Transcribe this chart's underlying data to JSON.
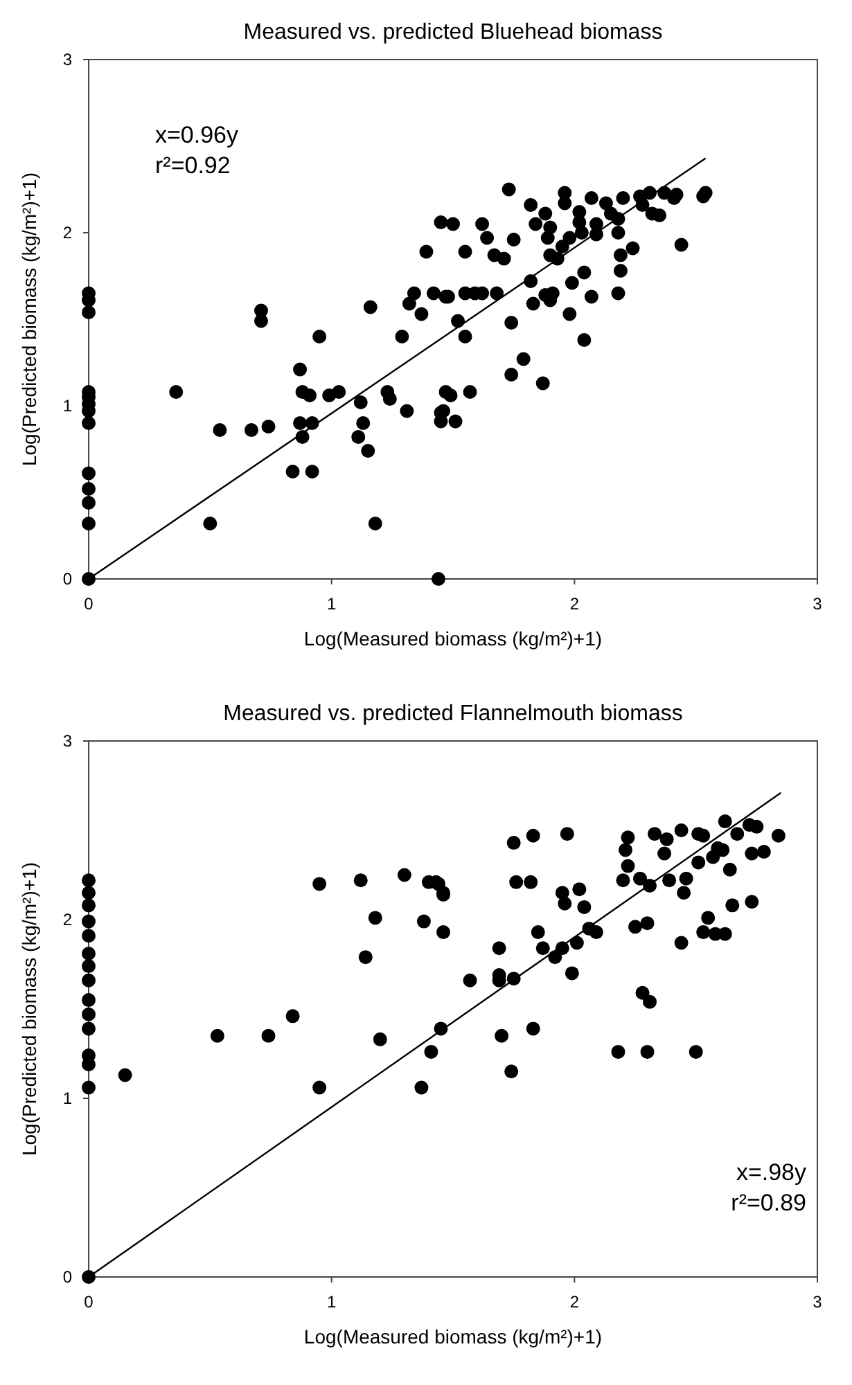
{
  "chart_data": [
    {
      "type": "scatter",
      "title": "Measured vs. predicted Bluehead biomass",
      "xlabel": "Log(Measured biomass (kg/m²)+1)",
      "ylabel": "Log(Predicted biomass (kg/m²)+1)",
      "xlim": [
        0,
        3
      ],
      "ylim": [
        0,
        3
      ],
      "xticks": [
        0,
        1,
        2,
        3
      ],
      "yticks": [
        0,
        1,
        2,
        3
      ],
      "annotations": [
        "x=0.96y",
        "r²=0.92"
      ],
      "series": [
        {
          "color": "#000000",
          "marker": "circle",
          "x": [
            0,
            0,
            0,
            0,
            0,
            0,
            0,
            0,
            0,
            0,
            0,
            0,
            0,
            0.36,
            0.54,
            0.67,
            0.74,
            0.71,
            0.71,
            0.5,
            0.87,
            0.88,
            0.91,
            0.87,
            0.92,
            0.88,
            0.84,
            0.92,
            0.95,
            0.99,
            1.03,
            1.12,
            1.13,
            1.11,
            1.15,
            1.16,
            1.18,
            1.23,
            1.24,
            1.31,
            1.29,
            1.39,
            1.45,
            1.34,
            1.32,
            1.37,
            1.42,
            1.47,
            1.47,
            1.45,
            1.45,
            1.44,
            1.73,
            1.5,
            1.62,
            1.64,
            1.55,
            1.67,
            1.71,
            1.75,
            1.82,
            1.88,
            1.84,
            1.9,
            1.89,
            1.96,
            1.96,
            2.02,
            2.02,
            2.03,
            1.98,
            1.95,
            1.9,
            1.93,
            2.07,
            2.13,
            2.15,
            2.18,
            2.09,
            2.09,
            2.2,
            2.27,
            2.31,
            2.28,
            2.32,
            2.35,
            2.37,
            2.42,
            2.41,
            2.53,
            2.54,
            2.44,
            2.18,
            2.19,
            2.24,
            2.19,
            2.18,
            2.04,
            1.99,
            2.07,
            1.98,
            2.04,
            1.82,
            1.83,
            1.88,
            1.91,
            1.9,
            1.74,
            1.79,
            1.74,
            1.87,
            1.48,
            1.55,
            1.59,
            1.62,
            1.68,
            1.52,
            1.55,
            1.49,
            1.57,
            1.46,
            1.51
          ],
          "values": [
            1.65,
            1.61,
            1.54,
            1.08,
            1.05,
            1.01,
            0.97,
            0.9,
            0.61,
            0.52,
            0.44,
            0.32,
            0,
            1.08,
            0.86,
            0.86,
            0.88,
            1.55,
            1.49,
            0.32,
            1.21,
            1.08,
            1.06,
            0.9,
            0.9,
            0.82,
            0.62,
            0.62,
            1.4,
            1.06,
            1.08,
            1.02,
            0.9,
            0.82,
            0.74,
            1.57,
            0.32,
            1.08,
            1.04,
            0.97,
            1.4,
            1.89,
            2.06,
            1.65,
            1.59,
            1.53,
            1.65,
            1.63,
            1.08,
            0.96,
            0.91,
            0,
            2.25,
            2.05,
            2.05,
            1.97,
            1.89,
            1.87,
            1.85,
            1.96,
            2.16,
            2.11,
            2.05,
            2.03,
            1.97,
            2.23,
            2.17,
            2.12,
            2.06,
            2,
            1.97,
            1.92,
            1.87,
            1.85,
            2.2,
            2.17,
            2.11,
            2.08,
            2.05,
            1.99,
            2.2,
            2.21,
            2.23,
            2.16,
            2.11,
            2.1,
            2.23,
            2.22,
            2.2,
            2.21,
            2.23,
            1.93,
            2,
            1.87,
            1.91,
            1.78,
            1.65,
            1.77,
            1.71,
            1.63,
            1.53,
            1.38,
            1.72,
            1.59,
            1.64,
            1.65,
            1.61,
            1.48,
            1.27,
            1.18,
            1.13,
            1.63,
            1.65,
            1.65,
            1.65,
            1.65,
            1.49,
            1.4,
            1.06,
            1.08,
            0.97,
            0.91
          ]
        },
        {
          "type": "line",
          "color": "#000000",
          "marker": "none",
          "line_style": "solid",
          "x": [
            0,
            2.54
          ],
          "values": [
            0,
            2.43
          ]
        }
      ]
    },
    {
      "type": "scatter",
      "title": "Measured vs. predicted Flannelmouth biomass",
      "xlabel": "Log(Measured biomass (kg/m²)+1)",
      "ylabel": "Log(Predicted biomass (kg/m²)+1)",
      "xlim": [
        0,
        3
      ],
      "ylim": [
        0,
        3
      ],
      "xticks": [
        0,
        1,
        2,
        3
      ],
      "yticks": [
        0,
        1,
        2,
        3
      ],
      "annotations": [
        "x=.98y",
        "r²=0.89"
      ],
      "series": [
        {
          "color": "#000000",
          "marker": "circle",
          "x": [
            0,
            0,
            0,
            0,
            0,
            0,
            0,
            0,
            0,
            0,
            0,
            0,
            0,
            0,
            0,
            0.15,
            0.53,
            0.74,
            0.84,
            0.95,
            0.95,
            1.12,
            1.18,
            1.14,
            1.2,
            1.3,
            1.4,
            1.44,
            1.46,
            1.38,
            1.46,
            1.45,
            1.41,
            1.37,
            1.43,
            1.46,
            1.75,
            1.83,
            1.97,
            1.76,
            1.82,
            1.95,
            2.02,
            1.96,
            2.04,
            1.85,
            1.69,
            1.87,
            1.92,
            1.95,
            2.01,
            2.06,
            2.09,
            1.57,
            1.69,
            1.69,
            1.75,
            1.99,
            1.7,
            1.83,
            1.74,
            2.18,
            2.3,
            2.5,
            2.28,
            2.31,
            2.25,
            2.3,
            2.44,
            2.53,
            2.55,
            2.58,
            2.62,
            2.65,
            2.73,
            2.45,
            2.22,
            2.21,
            2.33,
            2.38,
            2.44,
            2.51,
            2.53,
            2.62,
            2.67,
            2.72,
            2.75,
            2.84,
            2.78,
            2.73,
            2.22,
            2.2,
            2.27,
            2.31,
            2.37,
            2.39,
            2.46,
            2.51,
            2.57,
            2.61,
            2.64,
            2.59
          ],
          "values": [
            2.22,
            2.15,
            2.08,
            1.99,
            1.91,
            1.81,
            1.74,
            1.66,
            1.55,
            1.47,
            1.39,
            1.24,
            1.19,
            1.06,
            0,
            1.13,
            1.35,
            1.35,
            1.46,
            2.2,
            1.06,
            2.22,
            2.01,
            1.79,
            1.33,
            2.25,
            2.21,
            2.2,
            2.15,
            1.99,
            1.93,
            1.39,
            1.26,
            1.06,
            2.21,
            2.14,
            2.43,
            2.47,
            2.48,
            2.21,
            2.21,
            2.15,
            2.17,
            2.09,
            2.07,
            1.93,
            1.84,
            1.84,
            1.79,
            1.84,
            1.87,
            1.95,
            1.93,
            1.66,
            1.69,
            1.66,
            1.67,
            1.7,
            1.35,
            1.39,
            1.15,
            1.26,
            1.26,
            1.26,
            1.59,
            1.54,
            1.96,
            1.98,
            1.87,
            1.93,
            2.01,
            1.92,
            1.92,
            2.08,
            2.1,
            2.15,
            2.46,
            2.39,
            2.48,
            2.45,
            2.5,
            2.48,
            2.47,
            2.55,
            2.48,
            2.53,
            2.52,
            2.47,
            2.38,
            2.37,
            2.3,
            2.22,
            2.23,
            2.19,
            2.37,
            2.22,
            2.23,
            2.32,
            2.35,
            2.39,
            2.28,
            2.4
          ]
        },
        {
          "type": "line",
          "color": "#000000",
          "marker": "none",
          "line_style": "solid",
          "x": [
            0,
            2.85
          ],
          "values": [
            0,
            2.71
          ]
        }
      ]
    }
  ]
}
